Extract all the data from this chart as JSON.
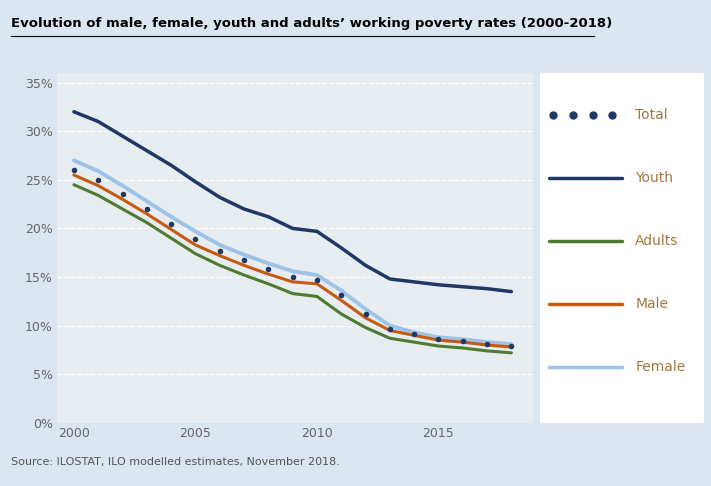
{
  "title": "Evolution of male, female, youth and adults’ working poverty rates (2000-2018)",
  "source": "Source: ILOSTAT, ILO modelled estimates, November 2018.",
  "years": [
    2000,
    2001,
    2002,
    2003,
    2004,
    2005,
    2006,
    2007,
    2008,
    2009,
    2010,
    2011,
    2012,
    2013,
    2014,
    2015,
    2016,
    2017,
    2018
  ],
  "youth": [
    32.0,
    31.0,
    29.5,
    28.0,
    26.5,
    24.8,
    23.2,
    22.0,
    21.2,
    20.0,
    19.7,
    18.0,
    16.2,
    14.8,
    14.5,
    14.2,
    14.0,
    13.8,
    13.5
  ],
  "adults": [
    24.5,
    23.4,
    22.0,
    20.6,
    19.0,
    17.4,
    16.2,
    15.2,
    14.3,
    13.3,
    13.0,
    11.2,
    9.8,
    8.7,
    8.3,
    7.9,
    7.7,
    7.4,
    7.2
  ],
  "male": [
    25.5,
    24.4,
    23.0,
    21.5,
    19.9,
    18.3,
    17.2,
    16.2,
    15.3,
    14.5,
    14.3,
    12.6,
    10.8,
    9.5,
    9.0,
    8.5,
    8.3,
    8.0,
    7.8
  ],
  "female": [
    27.0,
    25.9,
    24.4,
    22.8,
    21.2,
    19.7,
    18.3,
    17.3,
    16.4,
    15.6,
    15.2,
    13.6,
    11.7,
    10.0,
    9.3,
    8.8,
    8.6,
    8.3,
    8.1
  ],
  "total": [
    26.0,
    25.0,
    23.5,
    22.0,
    20.5,
    18.9,
    17.7,
    16.7,
    15.8,
    15.0,
    14.7,
    13.1,
    11.2,
    9.7,
    9.1,
    8.6,
    8.4,
    8.1,
    7.9
  ],
  "youth_color": "#1f3864",
  "adults_color": "#4e7b2f",
  "male_color": "#c55a11",
  "female_color": "#9dc3e6",
  "total_color": "#1f3864",
  "bg_color": "#dce6f0",
  "plot_bg": "#e8edf2",
  "legend_bg": "#ffffff",
  "label_color": "#a07840",
  "grid_color": "#ffffff",
  "tick_color": "#666666",
  "ylim_low": 0.0,
  "ylim_high": 0.36,
  "yticks": [
    0.0,
    0.05,
    0.1,
    0.15,
    0.2,
    0.25,
    0.3,
    0.35
  ],
  "ytick_labels": [
    "0%",
    "5%",
    "10%",
    "15%",
    "20%",
    "25%",
    "30%",
    "35%"
  ],
  "xticks": [
    2000,
    2005,
    2010,
    2015
  ],
  "xtick_labels": [
    "2000",
    "2005",
    "2010",
    "2015"
  ]
}
